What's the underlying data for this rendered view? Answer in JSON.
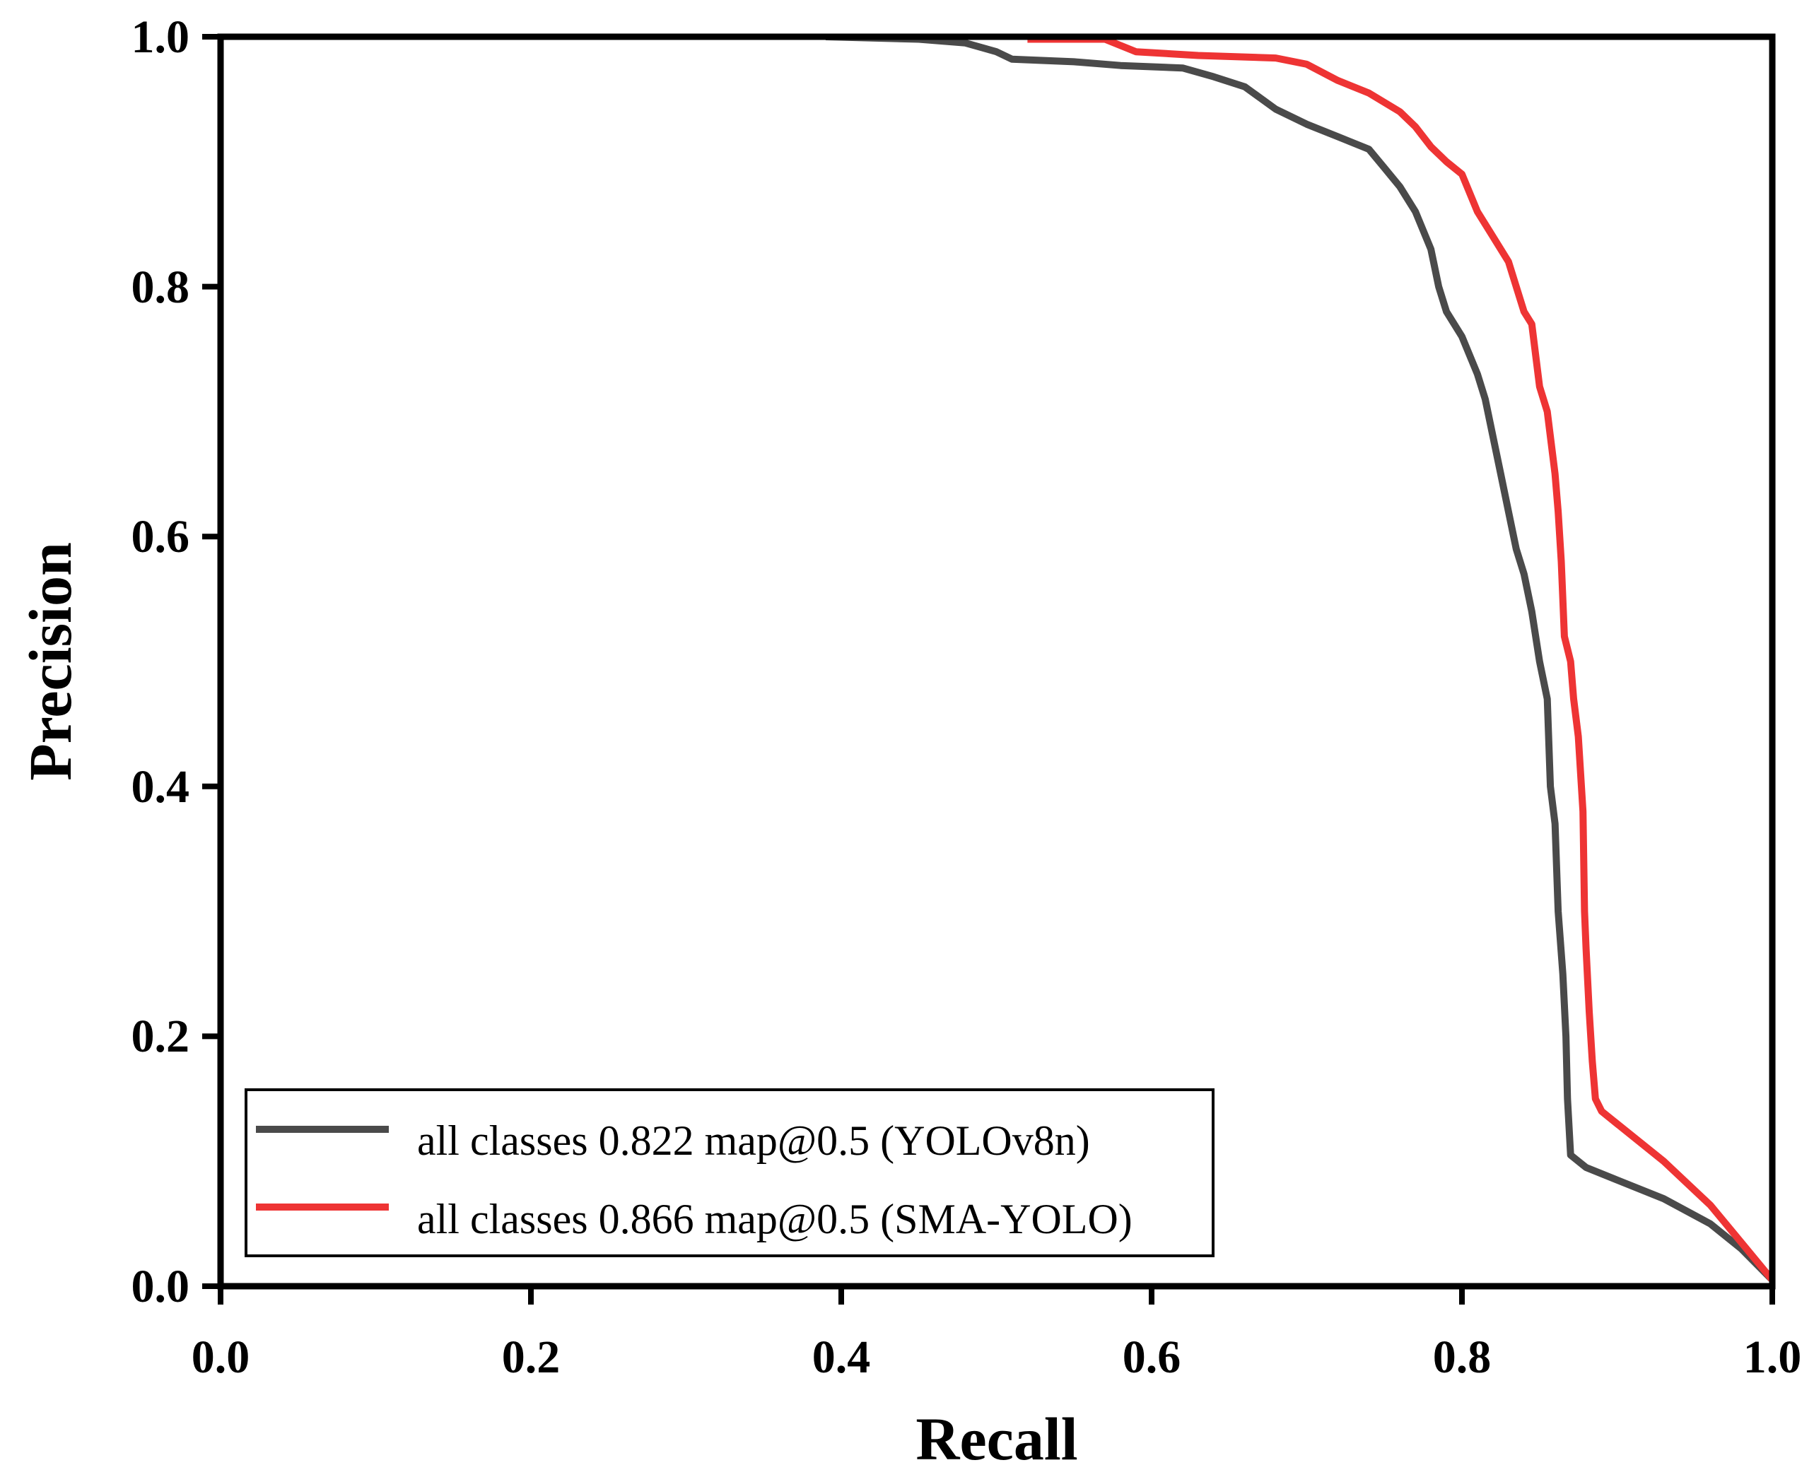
{
  "chart_data": {
    "type": "line",
    "title": "",
    "xlabel": "Recall",
    "ylabel": "Precision",
    "xlim": [
      0.0,
      1.0
    ],
    "ylim": [
      0.0,
      1.0
    ],
    "grid": false,
    "legend_position": "bottom-left",
    "xticks": [
      "0.0",
      "0.2",
      "0.4",
      "0.6",
      "0.8",
      "1.0"
    ],
    "yticks": [
      "0.0",
      "0.2",
      "0.4",
      "0.6",
      "0.8",
      "1.0"
    ],
    "series": [
      {
        "name": "all classes 0.822 map@0.5 (YOLOv8n)",
        "color": "#4a4a4a",
        "points": [
          [
            0.39,
            1.0
          ],
          [
            0.45,
            0.998
          ],
          [
            0.48,
            0.995
          ],
          [
            0.5,
            0.988
          ],
          [
            0.51,
            0.982
          ],
          [
            0.55,
            0.98
          ],
          [
            0.58,
            0.977
          ],
          [
            0.62,
            0.975
          ],
          [
            0.64,
            0.968
          ],
          [
            0.66,
            0.96
          ],
          [
            0.68,
            0.942
          ],
          [
            0.7,
            0.93
          ],
          [
            0.72,
            0.92
          ],
          [
            0.74,
            0.91
          ],
          [
            0.75,
            0.895
          ],
          [
            0.76,
            0.88
          ],
          [
            0.77,
            0.86
          ],
          [
            0.78,
            0.83
          ],
          [
            0.785,
            0.8
          ],
          [
            0.79,
            0.78
          ],
          [
            0.8,
            0.76
          ],
          [
            0.81,
            0.73
          ],
          [
            0.815,
            0.71
          ],
          [
            0.82,
            0.68
          ],
          [
            0.825,
            0.65
          ],
          [
            0.83,
            0.62
          ],
          [
            0.835,
            0.59
          ],
          [
            0.84,
            0.57
          ],
          [
            0.845,
            0.54
          ],
          [
            0.85,
            0.5
          ],
          [
            0.855,
            0.47
          ],
          [
            0.857,
            0.4
          ],
          [
            0.86,
            0.37
          ],
          [
            0.862,
            0.3
          ],
          [
            0.865,
            0.25
          ],
          [
            0.867,
            0.2
          ],
          [
            0.868,
            0.15
          ],
          [
            0.87,
            0.105
          ],
          [
            0.88,
            0.095
          ],
          [
            0.9,
            0.085
          ],
          [
            0.93,
            0.07
          ],
          [
            0.96,
            0.05
          ],
          [
            0.98,
            0.03
          ],
          [
            1.0,
            0.005
          ]
        ]
      },
      {
        "name": "all classes 0.866 map@0.5 (SMA-YOLO)",
        "color": "#ee3434",
        "points": [
          [
            0.52,
            0.998
          ],
          [
            0.57,
            0.998
          ],
          [
            0.59,
            0.988
          ],
          [
            0.63,
            0.985
          ],
          [
            0.68,
            0.983
          ],
          [
            0.7,
            0.978
          ],
          [
            0.72,
            0.965
          ],
          [
            0.74,
            0.955
          ],
          [
            0.76,
            0.94
          ],
          [
            0.77,
            0.928
          ],
          [
            0.78,
            0.912
          ],
          [
            0.79,
            0.9
          ],
          [
            0.8,
            0.89
          ],
          [
            0.81,
            0.86
          ],
          [
            0.82,
            0.84
          ],
          [
            0.83,
            0.82
          ],
          [
            0.835,
            0.8
          ],
          [
            0.84,
            0.78
          ],
          [
            0.845,
            0.77
          ],
          [
            0.85,
            0.72
          ],
          [
            0.855,
            0.7
          ],
          [
            0.86,
            0.65
          ],
          [
            0.862,
            0.62
          ],
          [
            0.864,
            0.58
          ],
          [
            0.866,
            0.52
          ],
          [
            0.87,
            0.5
          ],
          [
            0.872,
            0.47
          ],
          [
            0.875,
            0.44
          ],
          [
            0.878,
            0.38
          ],
          [
            0.879,
            0.3
          ],
          [
            0.88,
            0.27
          ],
          [
            0.882,
            0.22
          ],
          [
            0.884,
            0.18
          ],
          [
            0.886,
            0.15
          ],
          [
            0.89,
            0.14
          ],
          [
            0.9,
            0.13
          ],
          [
            0.93,
            0.1
          ],
          [
            0.96,
            0.065
          ],
          [
            0.98,
            0.035
          ],
          [
            1.0,
            0.005
          ]
        ]
      }
    ]
  }
}
